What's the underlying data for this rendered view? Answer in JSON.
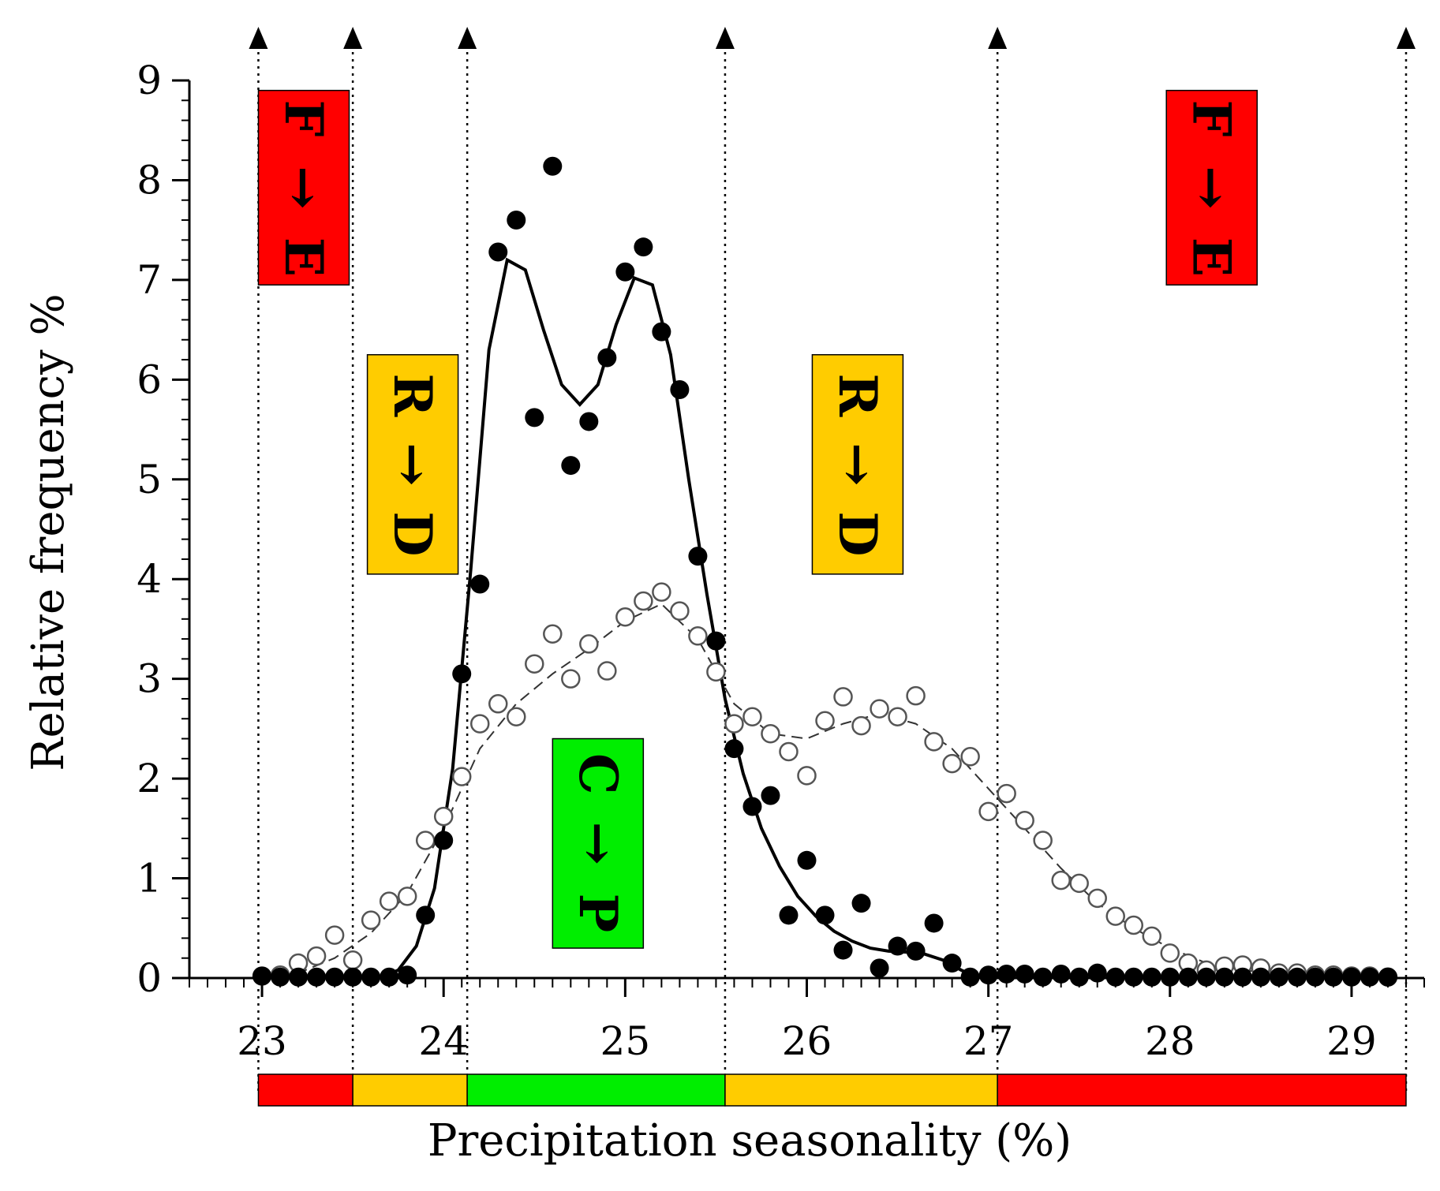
{
  "chart_data": {
    "type": "scatter",
    "title": "",
    "xlabel": "Precipitation seasonality (%)",
    "ylabel": "Relative frequency %",
    "xlim": [
      22.6,
      29.4
    ],
    "ylim": [
      0,
      9
    ],
    "xticks": [
      "23",
      "24",
      "25",
      "26",
      "27",
      "28",
      "29"
    ],
    "yticks": [
      "0",
      "1",
      "2",
      "3",
      "4",
      "5",
      "6",
      "7",
      "8",
      "9"
    ],
    "thresholds": [
      22.98,
      23.5,
      24.13,
      25.55,
      27.05,
      29.3
    ],
    "colors": {
      "red": "#ff0000",
      "orange": "#ffcc00",
      "green": "#00ee00",
      "ink": "#000000",
      "open_marker_stroke": "#555555"
    },
    "bands": [
      {
        "from": 22.98,
        "to": 23.5,
        "color": "red"
      },
      {
        "from": 23.5,
        "to": 24.13,
        "color": "orange"
      },
      {
        "from": 24.13,
        "to": 25.55,
        "color": "green"
      },
      {
        "from": 25.55,
        "to": 27.05,
        "color": "orange"
      },
      {
        "from": 27.05,
        "to": 29.3,
        "color": "red"
      }
    ],
    "transition_boxes": [
      {
        "top": "F",
        "arrow": "→",
        "bottom": "E",
        "color": "red",
        "x_center": 23.23,
        "y_top": 8.9,
        "y_bottom": 6.95
      },
      {
        "top": "R",
        "arrow": "→",
        "bottom": "D",
        "color": "orange",
        "x_center": 23.83,
        "y_top": 6.25,
        "y_bottom": 4.05
      },
      {
        "top": "C",
        "arrow": "→",
        "bottom": "P",
        "color": "green",
        "x_center": 24.85,
        "y_top": 2.4,
        "y_bottom": 0.3
      },
      {
        "top": "R",
        "arrow": "→",
        "bottom": "D",
        "color": "orange",
        "x_center": 26.28,
        "y_top": 6.25,
        "y_bottom": 4.05
      },
      {
        "top": "F",
        "arrow": "→",
        "bottom": "E",
        "color": "red",
        "x_center": 28.23,
        "y_top": 8.9,
        "y_bottom": 6.95
      }
    ],
    "series": [
      {
        "name": "filled",
        "marker": "filled-circle",
        "points": [
          [
            23.0,
            0.02
          ],
          [
            23.1,
            0.01
          ],
          [
            23.2,
            0.01
          ],
          [
            23.3,
            0.01
          ],
          [
            23.4,
            0.01
          ],
          [
            23.5,
            0.01
          ],
          [
            23.6,
            0.01
          ],
          [
            23.7,
            0.01
          ],
          [
            23.8,
            0.03
          ],
          [
            23.9,
            0.63
          ],
          [
            24.0,
            1.38
          ],
          [
            24.1,
            3.05
          ],
          [
            24.2,
            3.95
          ],
          [
            24.3,
            7.28
          ],
          [
            24.4,
            7.6
          ],
          [
            24.5,
            5.62
          ],
          [
            24.6,
            8.14
          ],
          [
            24.7,
            5.14
          ],
          [
            24.8,
            5.58
          ],
          [
            24.9,
            6.22
          ],
          [
            25.0,
            7.08
          ],
          [
            25.1,
            7.33
          ],
          [
            25.2,
            6.48
          ],
          [
            25.3,
            5.9
          ],
          [
            25.4,
            4.23
          ],
          [
            25.5,
            3.38
          ],
          [
            25.6,
            2.3
          ],
          [
            25.7,
            1.72
          ],
          [
            25.8,
            1.83
          ],
          [
            25.9,
            0.63
          ],
          [
            26.0,
            1.18
          ],
          [
            26.1,
            0.63
          ],
          [
            26.2,
            0.28
          ],
          [
            26.3,
            0.75
          ],
          [
            26.4,
            0.1
          ],
          [
            26.5,
            0.32
          ],
          [
            26.6,
            0.27
          ],
          [
            26.7,
            0.55
          ],
          [
            26.8,
            0.15
          ],
          [
            26.9,
            0.01
          ],
          [
            27.0,
            0.03
          ],
          [
            27.1,
            0.04
          ],
          [
            27.2,
            0.04
          ],
          [
            27.3,
            0.01
          ],
          [
            27.4,
            0.04
          ],
          [
            27.5,
            0.01
          ],
          [
            27.6,
            0.05
          ],
          [
            27.7,
            0.01
          ],
          [
            27.8,
            0.01
          ],
          [
            27.9,
            0.01
          ],
          [
            28.0,
            0.01
          ],
          [
            28.1,
            0.01
          ],
          [
            28.2,
            0.01
          ],
          [
            28.3,
            0.01
          ],
          [
            28.4,
            0.01
          ],
          [
            28.5,
            0.01
          ],
          [
            28.6,
            0.01
          ],
          [
            28.7,
            0.01
          ],
          [
            28.8,
            0.01
          ],
          [
            28.9,
            0.01
          ],
          [
            29.0,
            0.01
          ],
          [
            29.1,
            0.01
          ],
          [
            29.2,
            0.01
          ]
        ],
        "fit": [
          [
            23.65,
            0.0
          ],
          [
            23.75,
            0.08
          ],
          [
            23.85,
            0.32
          ],
          [
            23.95,
            0.9
          ],
          [
            24.05,
            2.1
          ],
          [
            24.15,
            4.1
          ],
          [
            24.25,
            6.3
          ],
          [
            24.35,
            7.2
          ],
          [
            24.45,
            7.1
          ],
          [
            24.55,
            6.5
          ],
          [
            24.65,
            5.95
          ],
          [
            24.75,
            5.75
          ],
          [
            24.85,
            5.95
          ],
          [
            24.95,
            6.55
          ],
          [
            25.05,
            7.02
          ],
          [
            25.15,
            6.95
          ],
          [
            25.25,
            6.25
          ],
          [
            25.35,
            5.0
          ],
          [
            25.45,
            3.85
          ],
          [
            25.55,
            2.8
          ],
          [
            25.65,
            2.05
          ],
          [
            25.75,
            1.5
          ],
          [
            25.85,
            1.12
          ],
          [
            25.95,
            0.82
          ],
          [
            26.05,
            0.62
          ],
          [
            26.15,
            0.47
          ],
          [
            26.25,
            0.37
          ],
          [
            26.35,
            0.3
          ],
          [
            26.45,
            0.27
          ],
          [
            26.55,
            0.26
          ],
          [
            26.65,
            0.24
          ],
          [
            26.75,
            0.18
          ],
          [
            26.85,
            0.08
          ],
          [
            26.95,
            0.0
          ]
        ]
      },
      {
        "name": "open",
        "marker": "open-circle",
        "points": [
          [
            23.0,
            0.02
          ],
          [
            23.1,
            0.03
          ],
          [
            23.2,
            0.15
          ],
          [
            23.3,
            0.22
          ],
          [
            23.4,
            0.43
          ],
          [
            23.5,
            0.18
          ],
          [
            23.6,
            0.58
          ],
          [
            23.7,
            0.77
          ],
          [
            23.8,
            0.82
          ],
          [
            23.9,
            1.38
          ],
          [
            24.0,
            1.62
          ],
          [
            24.1,
            2.02
          ],
          [
            24.2,
            2.55
          ],
          [
            24.3,
            2.75
          ],
          [
            24.4,
            2.62
          ],
          [
            24.5,
            3.15
          ],
          [
            24.6,
            3.45
          ],
          [
            24.7,
            3.0
          ],
          [
            24.8,
            3.35
          ],
          [
            24.9,
            3.08
          ],
          [
            25.0,
            3.62
          ],
          [
            25.1,
            3.78
          ],
          [
            25.2,
            3.87
          ],
          [
            25.3,
            3.68
          ],
          [
            25.4,
            3.43
          ],
          [
            25.5,
            3.07
          ],
          [
            25.6,
            2.55
          ],
          [
            25.7,
            2.62
          ],
          [
            25.8,
            2.45
          ],
          [
            25.9,
            2.27
          ],
          [
            26.0,
            2.03
          ],
          [
            26.1,
            2.58
          ],
          [
            26.2,
            2.82
          ],
          [
            26.3,
            2.53
          ],
          [
            26.4,
            2.7
          ],
          [
            26.5,
            2.62
          ],
          [
            26.6,
            2.83
          ],
          [
            26.7,
            2.37
          ],
          [
            26.8,
            2.15
          ],
          [
            26.9,
            2.22
          ],
          [
            27.0,
            1.67
          ],
          [
            27.1,
            1.85
          ],
          [
            27.2,
            1.58
          ],
          [
            27.3,
            1.38
          ],
          [
            27.4,
            0.98
          ],
          [
            27.5,
            0.95
          ],
          [
            27.6,
            0.8
          ],
          [
            27.7,
            0.62
          ],
          [
            27.8,
            0.53
          ],
          [
            27.9,
            0.42
          ],
          [
            28.0,
            0.25
          ],
          [
            28.1,
            0.15
          ],
          [
            28.2,
            0.08
          ],
          [
            28.3,
            0.12
          ],
          [
            28.4,
            0.13
          ],
          [
            28.5,
            0.1
          ],
          [
            28.6,
            0.05
          ],
          [
            28.7,
            0.05
          ],
          [
            28.8,
            0.03
          ],
          [
            28.9,
            0.03
          ],
          [
            29.0,
            0.02
          ],
          [
            29.1,
            0.02
          ],
          [
            29.2,
            0.01
          ]
        ],
        "fit": [
          [
            23.0,
            0.0
          ],
          [
            23.2,
            0.05
          ],
          [
            23.4,
            0.2
          ],
          [
            23.6,
            0.45
          ],
          [
            23.8,
            0.85
          ],
          [
            24.0,
            1.5
          ],
          [
            24.2,
            2.3
          ],
          [
            24.4,
            2.75
          ],
          [
            24.6,
            3.05
          ],
          [
            24.8,
            3.3
          ],
          [
            25.0,
            3.58
          ],
          [
            25.2,
            3.75
          ],
          [
            25.4,
            3.4
          ],
          [
            25.6,
            2.75
          ],
          [
            25.8,
            2.45
          ],
          [
            26.0,
            2.4
          ],
          [
            26.2,
            2.55
          ],
          [
            26.4,
            2.65
          ],
          [
            26.6,
            2.55
          ],
          [
            26.8,
            2.3
          ],
          [
            27.0,
            1.9
          ],
          [
            27.2,
            1.5
          ],
          [
            27.4,
            1.1
          ],
          [
            27.6,
            0.75
          ],
          [
            27.8,
            0.5
          ],
          [
            28.0,
            0.3
          ],
          [
            28.2,
            0.15
          ],
          [
            28.4,
            0.08
          ],
          [
            28.6,
            0.04
          ],
          [
            28.8,
            0.02
          ],
          [
            29.0,
            0.01
          ],
          [
            29.2,
            0.0
          ]
        ]
      }
    ]
  }
}
